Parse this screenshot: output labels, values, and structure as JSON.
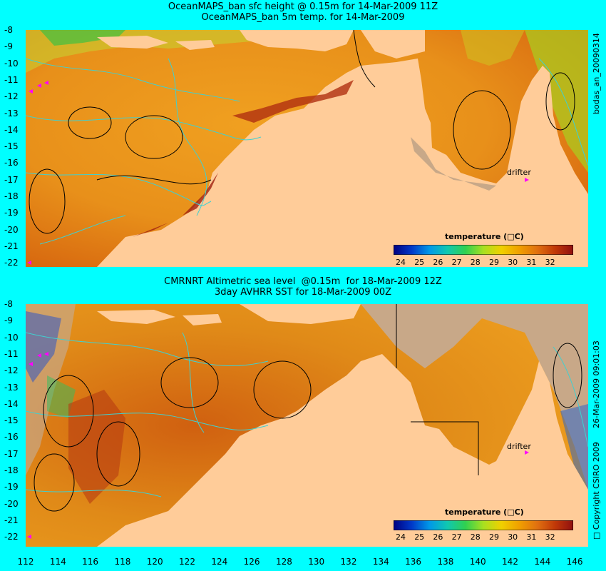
{
  "panels": [
    {
      "title_line1": "OceanMAPS_ban sfc height @ 0.15m for 14-Mar-2009 11Z",
      "title_line2": "OceanMAPS_ban 5m temp. for 14-Mar-2009",
      "side_label": "bodas_an_20090314",
      "drifter_label": "drifter",
      "colorbar_title": "temperature (□C)"
    },
    {
      "title_line1": "CMRNRT Altimetric sea level  @0.15m  for 18-Mar-2009 12Z",
      "title_line2": "3day AVHRR SST for 18-Mar-2009 00Z",
      "side_label": "26-Mar-2009 09:01:03",
      "side_label2": "□ Copyright CSIRO 2009",
      "drifter_label": "drifter",
      "colorbar_title": "temperature (□C)"
    }
  ],
  "y_axis_labels": [
    "-8",
    "-9",
    "-10",
    "-11",
    "-12",
    "-13",
    "-14",
    "-15",
    "-16",
    "-17",
    "-18",
    "-19",
    "-20",
    "-21",
    "-22"
  ],
  "x_axis_labels": [
    "112",
    "114",
    "116",
    "118",
    "120",
    "122",
    "124",
    "126",
    "128",
    "130",
    "132",
    "134",
    "136",
    "138",
    "140",
    "142",
    "144",
    "146"
  ],
  "colorbar_labels": [
    "24",
    "25",
    "26",
    "27",
    "28",
    "29",
    "30",
    "31",
    "32"
  ],
  "colorbar_colors": [
    "#000080",
    "#0038c8",
    "#0098e8",
    "#10c8b0",
    "#30d050",
    "#a8e020",
    "#f0d000",
    "#f0a000",
    "#e07010",
    "#c03808",
    "#901010"
  ],
  "colors": {
    "background": "#00FFFF",
    "ocean_warm": "#EE9A20",
    "land": "#FFCC99",
    "mask": "#C8A888",
    "contour_cyan": "#40D0D0",
    "drifter": "#FF00FF"
  }
}
